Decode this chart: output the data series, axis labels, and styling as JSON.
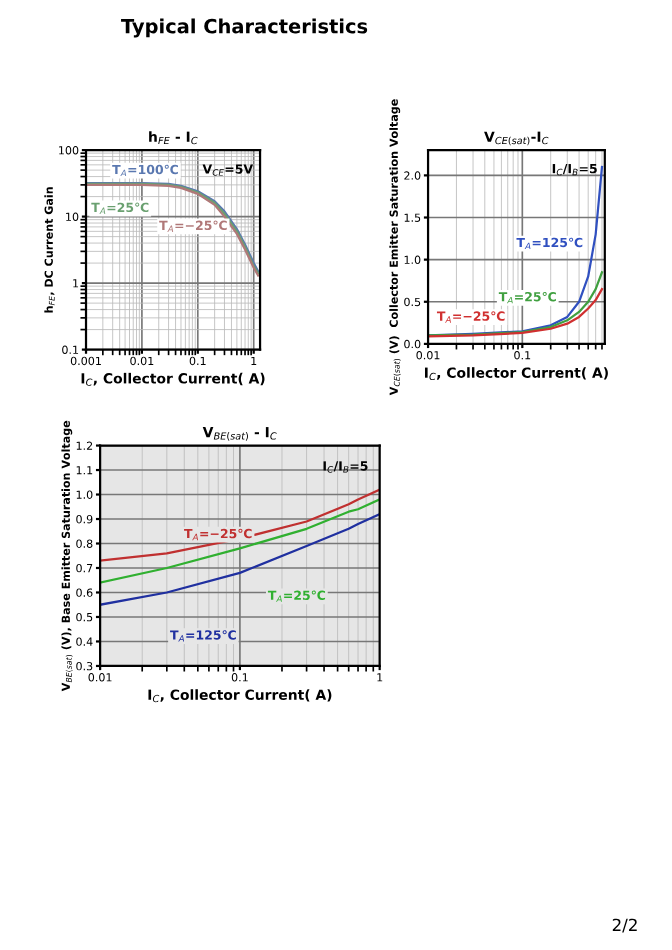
{
  "chart_data": [
    {
      "type": "line",
      "title": "h$_{FE}$ - I$_{C}$",
      "xlabel": "I$_{C}$, Collector Current( A)",
      "ylabel": "h$_{FE}$, DC Current Gain",
      "log": "xy",
      "grid": true,
      "x": [
        0.001,
        0.003,
        0.01,
        0.03,
        0.05,
        0.1,
        0.2,
        0.3,
        0.5,
        0.7,
        1,
        1.2
      ],
      "series": [
        {
          "name": "T$_{A}$=100℃",
          "color": "#5a78b0",
          "values": [
            32,
            32,
            32,
            31,
            29,
            24,
            17,
            12,
            6.5,
            3.8,
            2.0,
            1.5
          ]
        },
        {
          "name": "T$_{A}$=25℃",
          "color": "#6aa070",
          "values": [
            31,
            31,
            31,
            30,
            28,
            23,
            16,
            11,
            6,
            3.5,
            1.8,
            1.4
          ]
        },
        {
          "name": "T$_{A}$=−25℃",
          "color": "#b07878",
          "values": [
            30,
            30,
            30,
            29,
            27,
            22,
            15,
            10,
            5.5,
            3.2,
            1.7,
            1.3
          ]
        }
      ],
      "xlim": [
        0.001,
        1.3
      ],
      "xticks": [
        0.001,
        0.01,
        0.1,
        1
      ],
      "ylim": [
        0.1,
        100
      ],
      "yticks": [
        0.1,
        1,
        10,
        100
      ],
      "annotations": [
        "V$_{CE}$=5V",
        "Typical Characteristics"
      ]
    },
    {
      "type": "line",
      "title": "V$_{CE(sat)}$-I$_{C}$",
      "xlabel": "I$_{C}$, Collector Current( A)",
      "ylabel": "V$_{CE(sat)}$ (V)  Collector Emitter Saturation Voltage",
      "log": "x",
      "grid": true,
      "x": [
        0.01,
        0.03,
        0.1,
        0.2,
        0.3,
        0.4,
        0.5,
        0.6,
        0.7
      ],
      "series": [
        {
          "name": "T$_{A}$=125℃",
          "color": "#3050c0",
          "values": [
            0.1,
            0.12,
            0.15,
            0.22,
            0.32,
            0.5,
            0.8,
            1.3,
            2.1
          ]
        },
        {
          "name": "T$_{A}$=25℃",
          "color": "#40a040",
          "values": [
            0.1,
            0.11,
            0.14,
            0.2,
            0.28,
            0.38,
            0.5,
            0.65,
            0.85
          ]
        },
        {
          "name": "T$_{A}$=−25℃",
          "color": "#d03030",
          "values": [
            0.09,
            0.1,
            0.13,
            0.18,
            0.24,
            0.32,
            0.42,
            0.52,
            0.65
          ]
        }
      ],
      "xlim": [
        0.01,
        0.75
      ],
      "xticks": [
        0.01,
        0.1
      ],
      "ylim": [
        0,
        2.3
      ],
      "yticks": [
        {
          "value": 0,
          "label": "0.0"
        },
        0.5,
        {
          "value": 1,
          "label": "1.0"
        },
        1.5,
        {
          "value": 2,
          "label": "2.0"
        }
      ],
      "annotations": [
        "I$_{C}$/I$_{B}$=5"
      ]
    },
    {
      "type": "line",
      "title": "V$_{BE(sat)}$ - I$_{C}$",
      "xlabel": "I$_{C}$, Collector Current( A)",
      "ylabel": "V$_{BE(sat)}$ (V), Base Emitter Saturation Voltage",
      "log": "x",
      "grid": true,
      "x": [
        0.01,
        0.03,
        0.1,
        0.3,
        0.6,
        0.7,
        1
      ],
      "series": [
        {
          "name": "T$_{A}$=−25℃",
          "color": "#c03030",
          "values": [
            0.73,
            0.76,
            0.82,
            0.89,
            0.96,
            0.98,
            1.02
          ]
        },
        {
          "name": "T$_{A}$=25℃",
          "color": "#30b030",
          "values": [
            0.64,
            0.7,
            0.78,
            0.86,
            0.93,
            0.94,
            0.98
          ]
        },
        {
          "name": "T$_{A}$=125℃",
          "color": "#2030a0",
          "values": [
            0.55,
            0.6,
            0.68,
            0.79,
            0.86,
            0.88,
            0.92
          ]
        }
      ],
      "xlim": [
        0.01,
        1
      ],
      "xticks": [
        0.01,
        0.1,
        1
      ],
      "ylim": [
        0.3,
        1.2
      ],
      "yticks": [
        0.3,
        0.4,
        0.5,
        0.6,
        0.7,
        0.8,
        0.9,
        {
          "value": 1.0,
          "label": "1.0"
        },
        1.1,
        1.2
      ],
      "annotations": [
        "I$_{C}$/I$_{B}$=5",
        "2/2"
      ]
    }
  ]
}
